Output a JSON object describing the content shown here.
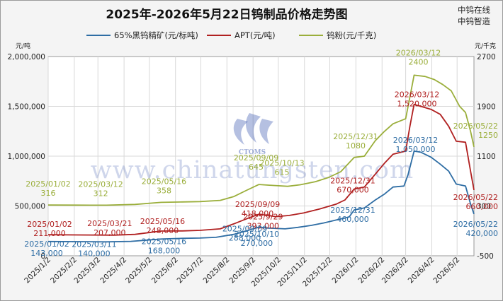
{
  "title": "2025年-2026年5月22日钨制品价格走势图",
  "brand": {
    "line1": "中钨在线",
    "line2": "中钨智造"
  },
  "watermark": {
    "url": "www.chinatungsten.com",
    "logo_text": "CTOMS"
  },
  "colors": {
    "concentrate": "#2e6da4",
    "apt": "#b02020",
    "powder": "#9aae3a",
    "grid": "#d8d8d8",
    "plot_bg": "#ffffff",
    "watermark": "#2a4aa8"
  },
  "chart_data": {
    "type": "line",
    "grid": true,
    "legend_position": "top",
    "left_axis": {
      "unit_label": "元/吨",
      "ylim": [
        0,
        2000000
      ],
      "ticks": [
        "0",
        "500,000",
        "1,000,000",
        "1,500,000",
        "2,000,000"
      ]
    },
    "right_axis": {
      "unit_label": "元/千克",
      "ylim": [
        -500,
        2700
      ],
      "ticks": [
        "-500",
        "300",
        "1100",
        "1900",
        "2700"
      ]
    },
    "x_axis": {
      "range": [
        "2025-01-02",
        "2026-05-22"
      ],
      "ticks": [
        {
          "label": "2025/1/2",
          "date": "2025-01-02"
        },
        {
          "label": "2025/2/2",
          "date": "2025-02-02"
        },
        {
          "label": "2025/3/2",
          "date": "2025-03-02"
        },
        {
          "label": "2025/4/2",
          "date": "2025-04-02"
        },
        {
          "label": "2025/5/2",
          "date": "2025-05-02"
        },
        {
          "label": "2025/6/2",
          "date": "2025-06-02"
        },
        {
          "label": "2025/7/2",
          "date": "2025-07-02"
        },
        {
          "label": "2025/8/2",
          "date": "2025-08-02"
        },
        {
          "label": "2025/9/2",
          "date": "2025-09-02"
        },
        {
          "label": "2025/10/2",
          "date": "2025-10-02"
        },
        {
          "label": "2025/11/2",
          "date": "2025-11-02"
        },
        {
          "label": "2025/12/2",
          "date": "2025-12-02"
        },
        {
          "label": "2026/1/2",
          "date": "2026-01-02"
        },
        {
          "label": "2026/2/2",
          "date": "2026-02-02"
        },
        {
          "label": "2026/3/2",
          "date": "2026-03-02"
        },
        {
          "label": "2026/4/2",
          "date": "2026-04-02"
        },
        {
          "label": "2026/5/2",
          "date": "2026-05-02"
        }
      ]
    },
    "series": [
      {
        "name": "65%黑钨精矿(元/标吨)",
        "key": "concentrate",
        "axis": "left",
        "points": [
          [
            "2025-01-02",
            143000
          ],
          [
            "2025-02-05",
            142000
          ],
          [
            "2025-03-11",
            140000
          ],
          [
            "2025-04-10",
            145000
          ],
          [
            "2025-05-16",
            168000
          ],
          [
            "2025-06-10",
            175000
          ],
          [
            "2025-07-01",
            178000
          ],
          [
            "2025-07-20",
            185000
          ],
          [
            "2025-08-10",
            215000
          ],
          [
            "2025-08-25",
            250000
          ],
          [
            "2025-09-09",
            288000
          ],
          [
            "2025-09-20",
            278000
          ],
          [
            "2025-10-10",
            270000
          ],
          [
            "2025-10-25",
            285000
          ],
          [
            "2025-11-10",
            305000
          ],
          [
            "2025-11-25",
            330000
          ],
          [
            "2025-12-10",
            360000
          ],
          [
            "2025-12-25",
            390000
          ],
          [
            "2025-12-31",
            460000
          ],
          [
            "2026-01-12",
            480000
          ],
          [
            "2026-01-25",
            560000
          ],
          [
            "2026-02-05",
            620000
          ],
          [
            "2026-02-15",
            690000
          ],
          [
            "2026-02-28",
            700000
          ],
          [
            "2026-03-05",
            820000
          ],
          [
            "2026-03-12",
            1050000
          ],
          [
            "2026-03-20",
            1040000
          ],
          [
            "2026-04-01",
            990000
          ],
          [
            "2026-04-12",
            920000
          ],
          [
            "2026-04-22",
            850000
          ],
          [
            "2026-05-01",
            720000
          ],
          [
            "2026-05-12",
            700000
          ],
          [
            "2026-05-18",
            520000
          ],
          [
            "2026-05-22",
            420000
          ]
        ]
      },
      {
        "name": "APT(元/吨)",
        "key": "apt",
        "axis": "left",
        "points": [
          [
            "2025-01-02",
            211000
          ],
          [
            "2025-02-05",
            209000
          ],
          [
            "2025-03-21",
            207000
          ],
          [
            "2025-04-15",
            215000
          ],
          [
            "2025-05-16",
            248000
          ],
          [
            "2025-06-10",
            250000
          ],
          [
            "2025-07-01",
            255000
          ],
          [
            "2025-07-25",
            270000
          ],
          [
            "2025-08-10",
            320000
          ],
          [
            "2025-08-25",
            370000
          ],
          [
            "2025-09-09",
            418000
          ],
          [
            "2025-09-29",
            393000
          ],
          [
            "2025-10-15",
            405000
          ],
          [
            "2025-11-01",
            430000
          ],
          [
            "2025-11-20",
            470000
          ],
          [
            "2025-12-10",
            520000
          ],
          [
            "2025-12-20",
            560000
          ],
          [
            "2025-12-31",
            670000
          ],
          [
            "2026-01-12",
            690000
          ],
          [
            "2026-01-25",
            820000
          ],
          [
            "2026-02-05",
            930000
          ],
          [
            "2026-02-15",
            1020000
          ],
          [
            "2026-03-02",
            1050000
          ],
          [
            "2026-03-07",
            1300000
          ],
          [
            "2026-03-12",
            1520000
          ],
          [
            "2026-03-20",
            1500000
          ],
          [
            "2026-04-01",
            1470000
          ],
          [
            "2026-04-12",
            1420000
          ],
          [
            "2026-04-22",
            1300000
          ],
          [
            "2026-05-01",
            1150000
          ],
          [
            "2026-05-12",
            1140000
          ],
          [
            "2026-05-18",
            850000
          ],
          [
            "2026-05-22",
            660000
          ]
        ]
      },
      {
        "name": "钨粉(元/千克)",
        "key": "powder",
        "axis": "right",
        "points": [
          [
            "2025-01-02",
            316
          ],
          [
            "2025-02-05",
            314
          ],
          [
            "2025-03-12",
            312
          ],
          [
            "2025-04-15",
            325
          ],
          [
            "2025-05-16",
            358
          ],
          [
            "2025-06-10",
            365
          ],
          [
            "2025-07-01",
            370
          ],
          [
            "2025-07-25",
            390
          ],
          [
            "2025-08-10",
            450
          ],
          [
            "2025-08-25",
            550
          ],
          [
            "2025-09-09",
            645
          ],
          [
            "2025-09-25",
            630
          ],
          [
            "2025-10-13",
            615
          ],
          [
            "2025-10-28",
            640
          ],
          [
            "2025-11-15",
            690
          ],
          [
            "2025-12-01",
            760
          ],
          [
            "2025-12-15",
            850
          ],
          [
            "2025-12-31",
            1080
          ],
          [
            "2026-01-12",
            1100
          ],
          [
            "2026-01-25",
            1350
          ],
          [
            "2026-02-05",
            1500
          ],
          [
            "2026-02-15",
            1620
          ],
          [
            "2026-03-02",
            1700
          ],
          [
            "2026-03-07",
            2050
          ],
          [
            "2026-03-12",
            2400
          ],
          [
            "2026-03-25",
            2380
          ],
          [
            "2026-04-05",
            2330
          ],
          [
            "2026-04-15",
            2250
          ],
          [
            "2026-04-25",
            2150
          ],
          [
            "2026-05-05",
            1900
          ],
          [
            "2026-05-12",
            1800
          ],
          [
            "2026-05-18",
            1500
          ],
          [
            "2026-05-22",
            1250
          ]
        ]
      }
    ],
    "annotations": [
      {
        "series": "powder",
        "date": "2025-01-02",
        "value": 316,
        "date_label": "2025/01/02",
        "value_label": "316"
      },
      {
        "series": "powder",
        "date": "2025-03-12",
        "value": 312,
        "date_label": "2025/03/12",
        "value_label": "312"
      },
      {
        "series": "powder",
        "date": "2025-05-16",
        "value": 358,
        "date_label": "2025/05/16",
        "value_label": "358"
      },
      {
        "series": "powder",
        "date": "2025-09-09",
        "value": 645,
        "date_label": "2025/09/09",
        "value_label": "645"
      },
      {
        "series": "powder",
        "date": "2025-10-13",
        "value": 615,
        "date_label": "2025/10/13",
        "value_label": "615"
      },
      {
        "series": "powder",
        "date": "2025-12-31",
        "value": 1080,
        "date_label": "2025/12/31",
        "value_label": "1080"
      },
      {
        "series": "powder",
        "date": "2026-03-12",
        "value": 2400,
        "date_label": "2026/03/12",
        "value_label": "2400"
      },
      {
        "series": "powder",
        "date": "2026-05-22",
        "value": 1250,
        "date_label": "2026/05/22",
        "value_label": "1250"
      },
      {
        "series": "apt",
        "date": "2025-01-02",
        "value": 211000,
        "date_label": "2025/01/02",
        "value_label": "211,000"
      },
      {
        "series": "apt",
        "date": "2025-03-21",
        "value": 207000,
        "date_label": "2025/03/21",
        "value_label": "207,000"
      },
      {
        "series": "apt",
        "date": "2025-05-16",
        "value": 248000,
        "date_label": "2025/05/16",
        "value_label": "248,000"
      },
      {
        "series": "apt",
        "date": "2025-09-09",
        "value": 418000,
        "date_label": "2025/09/09",
        "value_label": "418,000"
      },
      {
        "series": "apt",
        "date": "2025-09-29",
        "value": 393000,
        "date_label": "2025/9/29",
        "value_label": "393,000"
      },
      {
        "series": "apt",
        "date": "2025-12-31",
        "value": 670000,
        "date_label": "2025/12/31",
        "value_label": "670,000"
      },
      {
        "series": "apt",
        "date": "2026-03-12",
        "value": 1520000,
        "date_label": "2026/03/12",
        "value_label": "1,520,000"
      },
      {
        "series": "apt",
        "date": "2026-05-22",
        "value": 660000,
        "date_label": "2026/05/22",
        "value_label": "660,000"
      },
      {
        "series": "concentrate",
        "date": "2025-01-02",
        "value": 143000,
        "date_label": "2025/01/02",
        "value_label": "143,000"
      },
      {
        "series": "concentrate",
        "date": "2025-03-11",
        "value": 140000,
        "date_label": "2025/03/11",
        "value_label": "140,000"
      },
      {
        "series": "concentrate",
        "date": "2025-05-16",
        "value": 168000,
        "date_label": "2025/05/16",
        "value_label": "168,000"
      },
      {
        "series": "concentrate",
        "date": "2025-09-09",
        "value": 288000,
        "date_label": "2025/09/09",
        "value_label": "288,000"
      },
      {
        "series": "concentrate",
        "date": "2025-10-10",
        "value": 270000,
        "date_label": "2025/10/10",
        "value_label": "270,000"
      },
      {
        "series": "concentrate",
        "date": "2025-12-31",
        "value": 460000,
        "date_label": "2025/12/31",
        "value_label": "460,000"
      },
      {
        "series": "concentrate",
        "date": "2026-03-12",
        "value": 1050000,
        "date_label": "2026/03/12",
        "value_label": "1,050,000"
      },
      {
        "series": "concentrate",
        "date": "2026-05-22",
        "value": 420000,
        "date_label": "2026/05/22",
        "value_label": "420,000"
      }
    ]
  }
}
